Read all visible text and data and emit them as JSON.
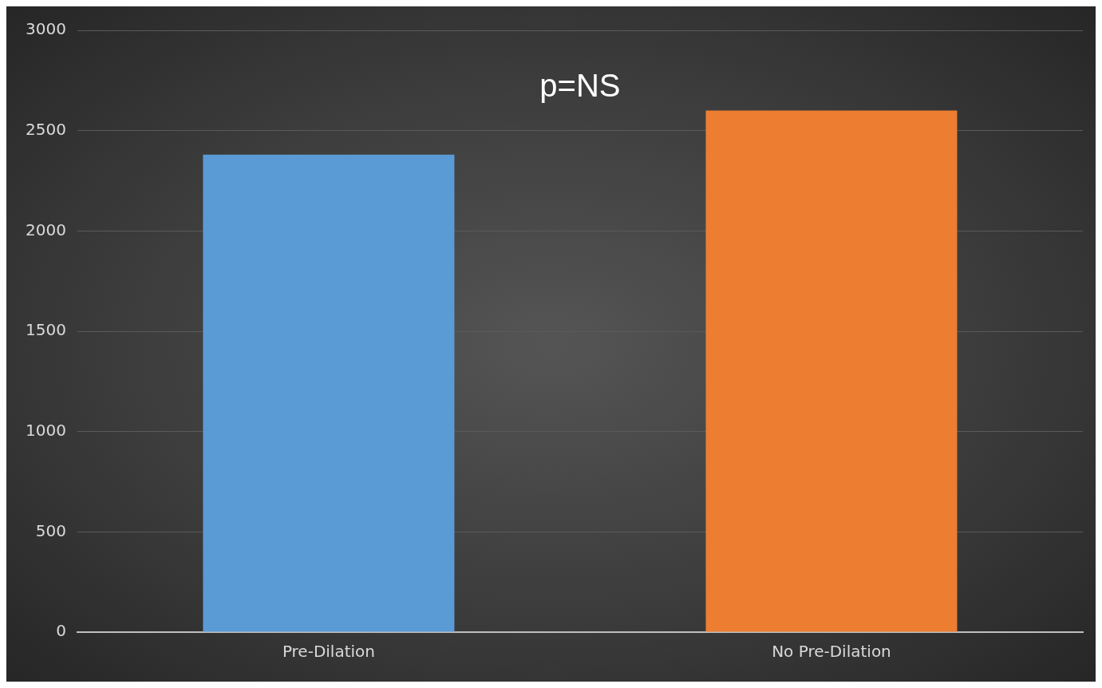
{
  "chart_data": {
    "type": "bar",
    "categories": [
      "Pre-Dilation",
      "No Pre-Dilation"
    ],
    "values": [
      2380,
      2600
    ],
    "colors": [
      "#5b9bd5",
      "#ed7d31"
    ],
    "ylim": [
      0,
      3000
    ],
    "yticks": [
      0,
      500,
      1000,
      1500,
      2000,
      2500,
      3000
    ],
    "grid": "y",
    "legend": false,
    "annotations": [
      "p=NS"
    ]
  }
}
